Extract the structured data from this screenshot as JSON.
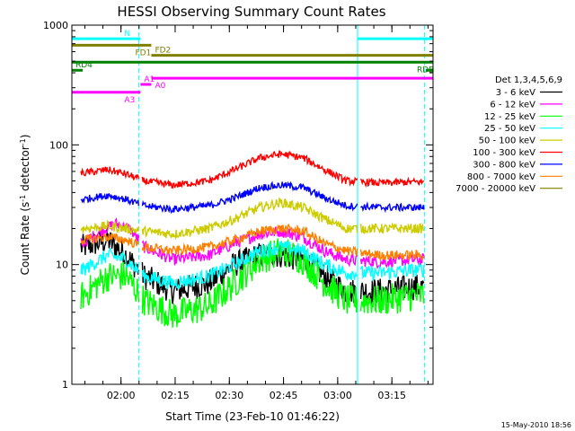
{
  "chart_data": {
    "type": "line",
    "title": "HESSI Observing Summary Count Rates",
    "xlabel": "Start Time (23-Feb-10 01:46:22)",
    "ylabel_main": "Count Rate (s",
    "ylabel_sup1": "-1",
    "ylabel_mid": " detector",
    "ylabel_sup2": "-1",
    "ylabel_end": ")",
    "y_scale": "log",
    "ylim": [
      1,
      1000
    ],
    "xlim_minutes": [
      0,
      100
    ],
    "x_ticks": [
      {
        "label": "02:00",
        "t": 13.6
      },
      {
        "label": "02:15",
        "t": 28.6
      },
      {
        "label": "02:30",
        "t": 43.6
      },
      {
        "label": "02:45",
        "t": 58.6
      },
      {
        "label": "03:00",
        "t": 73.6
      },
      {
        "label": "03:15",
        "t": 88.6
      }
    ],
    "y_ticks": [
      {
        "label": "1",
        "v": 1
      },
      {
        "label": "10",
        "v": 10
      },
      {
        "label": "100",
        "v": 100
      },
      {
        "label": "1000",
        "v": 1000
      }
    ],
    "legend_header": "Det 1,3,4,5,6,9",
    "series": [
      {
        "name": "3 - 6 keV",
        "color": "#000000",
        "points": [
          [
            3,
            14
          ],
          [
            10,
            16
          ],
          [
            15,
            12
          ],
          [
            20,
            8
          ],
          [
            28,
            6
          ],
          [
            38,
            7
          ],
          [
            45,
            10
          ],
          [
            52,
            12
          ],
          [
            58,
            12
          ],
          [
            64,
            11
          ],
          [
            70,
            8
          ],
          [
            76,
            6
          ],
          [
            85,
            6
          ],
          [
            95,
            6.5
          ]
        ]
      },
      {
        "name": "6 - 12 keV",
        "color": "#ff00ff",
        "points": [
          [
            3,
            15
          ],
          [
            8,
            19
          ],
          [
            12,
            22
          ],
          [
            16,
            20
          ],
          [
            20,
            14
          ],
          [
            28,
            11
          ],
          [
            38,
            12
          ],
          [
            45,
            15
          ],
          [
            52,
            18
          ],
          [
            58,
            19
          ],
          [
            64,
            17
          ],
          [
            70,
            13
          ],
          [
            76,
            11
          ],
          [
            85,
            10.5
          ],
          [
            95,
            11
          ]
        ]
      },
      {
        "name": "12 - 25 keV",
        "color": "#00ff00",
        "points": [
          [
            3,
            5.5
          ],
          [
            10,
            8
          ],
          [
            15,
            8
          ],
          [
            20,
            5
          ],
          [
            28,
            3.8
          ],
          [
            38,
            4.5
          ],
          [
            45,
            7
          ],
          [
            52,
            11
          ],
          [
            58,
            13
          ],
          [
            64,
            11
          ],
          [
            70,
            7
          ],
          [
            76,
            5
          ],
          [
            85,
            5
          ],
          [
            95,
            5.5
          ]
        ]
      },
      {
        "name": "25 - 50 keV",
        "color": "#00ffff",
        "points": [
          [
            3,
            9
          ],
          [
            10,
            12
          ],
          [
            15,
            11
          ],
          [
            20,
            8
          ],
          [
            28,
            7
          ],
          [
            38,
            8
          ],
          [
            45,
            10
          ],
          [
            52,
            13
          ],
          [
            58,
            14
          ],
          [
            64,
            13
          ],
          [
            70,
            10
          ],
          [
            76,
            8.5
          ],
          [
            85,
            8.5
          ],
          [
            95,
            9
          ]
        ]
      },
      {
        "name": "50 - 100 keV",
        "color": "#cccc00",
        "points": [
          [
            3,
            20
          ],
          [
            10,
            21
          ],
          [
            15,
            20
          ],
          [
            20,
            19
          ],
          [
            28,
            18
          ],
          [
            38,
            20
          ],
          [
            45,
            24
          ],
          [
            52,
            30
          ],
          [
            58,
            33
          ],
          [
            64,
            30
          ],
          [
            70,
            24
          ],
          [
            76,
            20
          ],
          [
            85,
            20
          ],
          [
            95,
            20
          ]
        ]
      },
      {
        "name": "100 - 300 keV",
        "color": "#ff0000",
        "points": [
          [
            3,
            58
          ],
          [
            10,
            62
          ],
          [
            15,
            57
          ],
          [
            20,
            50
          ],
          [
            28,
            46
          ],
          [
            38,
            50
          ],
          [
            45,
            62
          ],
          [
            52,
            78
          ],
          [
            58,
            84
          ],
          [
            64,
            78
          ],
          [
            70,
            62
          ],
          [
            76,
            50
          ],
          [
            85,
            48
          ],
          [
            95,
            49
          ]
        ]
      },
      {
        "name": "300 - 800 keV",
        "color": "#0000ff",
        "points": [
          [
            3,
            35
          ],
          [
            10,
            38
          ],
          [
            15,
            35
          ],
          [
            20,
            31
          ],
          [
            28,
            29
          ],
          [
            38,
            31
          ],
          [
            45,
            36
          ],
          [
            52,
            44
          ],
          [
            58,
            46
          ],
          [
            64,
            44
          ],
          [
            70,
            36
          ],
          [
            76,
            31
          ],
          [
            85,
            30
          ],
          [
            95,
            30
          ]
        ]
      },
      {
        "name": "800 - 7000 keV",
        "color": "#ff8000",
        "points": [
          [
            3,
            16
          ],
          [
            10,
            17
          ],
          [
            15,
            16
          ],
          [
            20,
            14
          ],
          [
            28,
            13
          ],
          [
            38,
            14
          ],
          [
            45,
            16
          ],
          [
            52,
            19
          ],
          [
            58,
            20
          ],
          [
            64,
            19
          ],
          [
            70,
            15
          ],
          [
            76,
            13
          ],
          [
            85,
            12
          ],
          [
            95,
            12
          ]
        ]
      },
      {
        "name": "7000 - 20000 keV",
        "color": "#808000",
        "points": []
      }
    ],
    "flag_bars": [
      {
        "label": "N",
        "color": "#00ffff",
        "y": 770,
        "segments": [
          [
            0,
            19
          ],
          [
            79,
            100
          ]
        ]
      },
      {
        "label": "FD1",
        "color": "#808000",
        "y": 680,
        "segments": [
          [
            0,
            22
          ]
        ]
      },
      {
        "label": "FD2",
        "color": "#808000",
        "y": 560,
        "segments": [
          [
            22,
            100
          ]
        ]
      },
      {
        "label": "RDB",
        "color": "#008000",
        "y": 490,
        "segments": [
          [
            0,
            100
          ]
        ]
      },
      {
        "label": "RD4",
        "color": "#008000",
        "y": 420,
        "segments": [
          [
            0,
            3
          ],
          [
            98,
            100
          ]
        ]
      },
      {
        "label": "A0",
        "color": "#ff00ff",
        "y": 360,
        "segments": [
          [
            22,
            100
          ]
        ]
      },
      {
        "label": "A1",
        "color": "#ff00ff",
        "y": 320,
        "segments": [
          [
            19,
            22
          ]
        ]
      },
      {
        "label": "A3",
        "color": "#ff00ff",
        "y": 275,
        "segments": [
          [
            0,
            19
          ]
        ]
      }
    ],
    "vlines": [
      {
        "t": 0,
        "color": "#00ffff",
        "dash": "solid"
      },
      {
        "t": 18.5,
        "color": "#00ffff",
        "dash": "dashed"
      },
      {
        "t": 79.1,
        "color": "#00ffff",
        "dash": "solid"
      },
      {
        "t": 97.6,
        "color": "#00ffff",
        "dash": "dashed"
      }
    ],
    "grid": false,
    "legend_placement": "right"
  },
  "timestamp": "15-May-2010 18:56"
}
